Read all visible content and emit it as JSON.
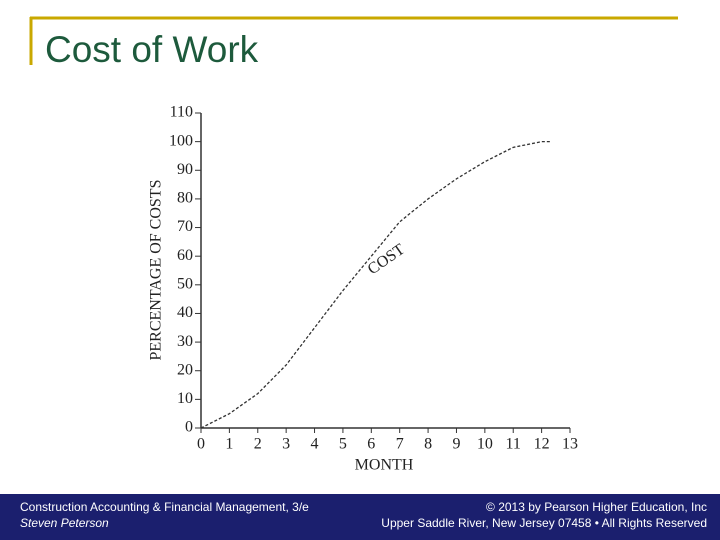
{
  "chart_data": {
    "type": "line",
    "title": "Cost of Work",
    "x_label": "MONTH",
    "y_label": "PERCENTAGE OF COSTS",
    "annotation": "COST",
    "x": [
      0,
      1,
      2,
      3,
      4,
      5,
      6,
      7,
      8,
      9,
      10,
      11,
      12,
      12.3
    ],
    "values": [
      0,
      5,
      12,
      22,
      35,
      48,
      60,
      72,
      80,
      87,
      93,
      98,
      100,
      100
    ],
    "color": "#333333",
    "xlim": [
      0,
      13
    ],
    "xticks": [
      0,
      1,
      2,
      3,
      4,
      5,
      6,
      7,
      8,
      9,
      10,
      11,
      12,
      13
    ],
    "ylim": [
      0,
      110
    ],
    "yticks": [
      0,
      10,
      20,
      30,
      40,
      50,
      60,
      70,
      80,
      90,
      100,
      110
    ],
    "grid": false
  },
  "footer": {
    "left": [
      "Construction Accounting & Financial Management, 3/e",
      "Steven Peterson"
    ],
    "right": [
      "© 2013 by Pearson Higher Education, Inc",
      "Upper Saddle River, New Jersey 07458 • All Rights Reserved"
    ]
  }
}
